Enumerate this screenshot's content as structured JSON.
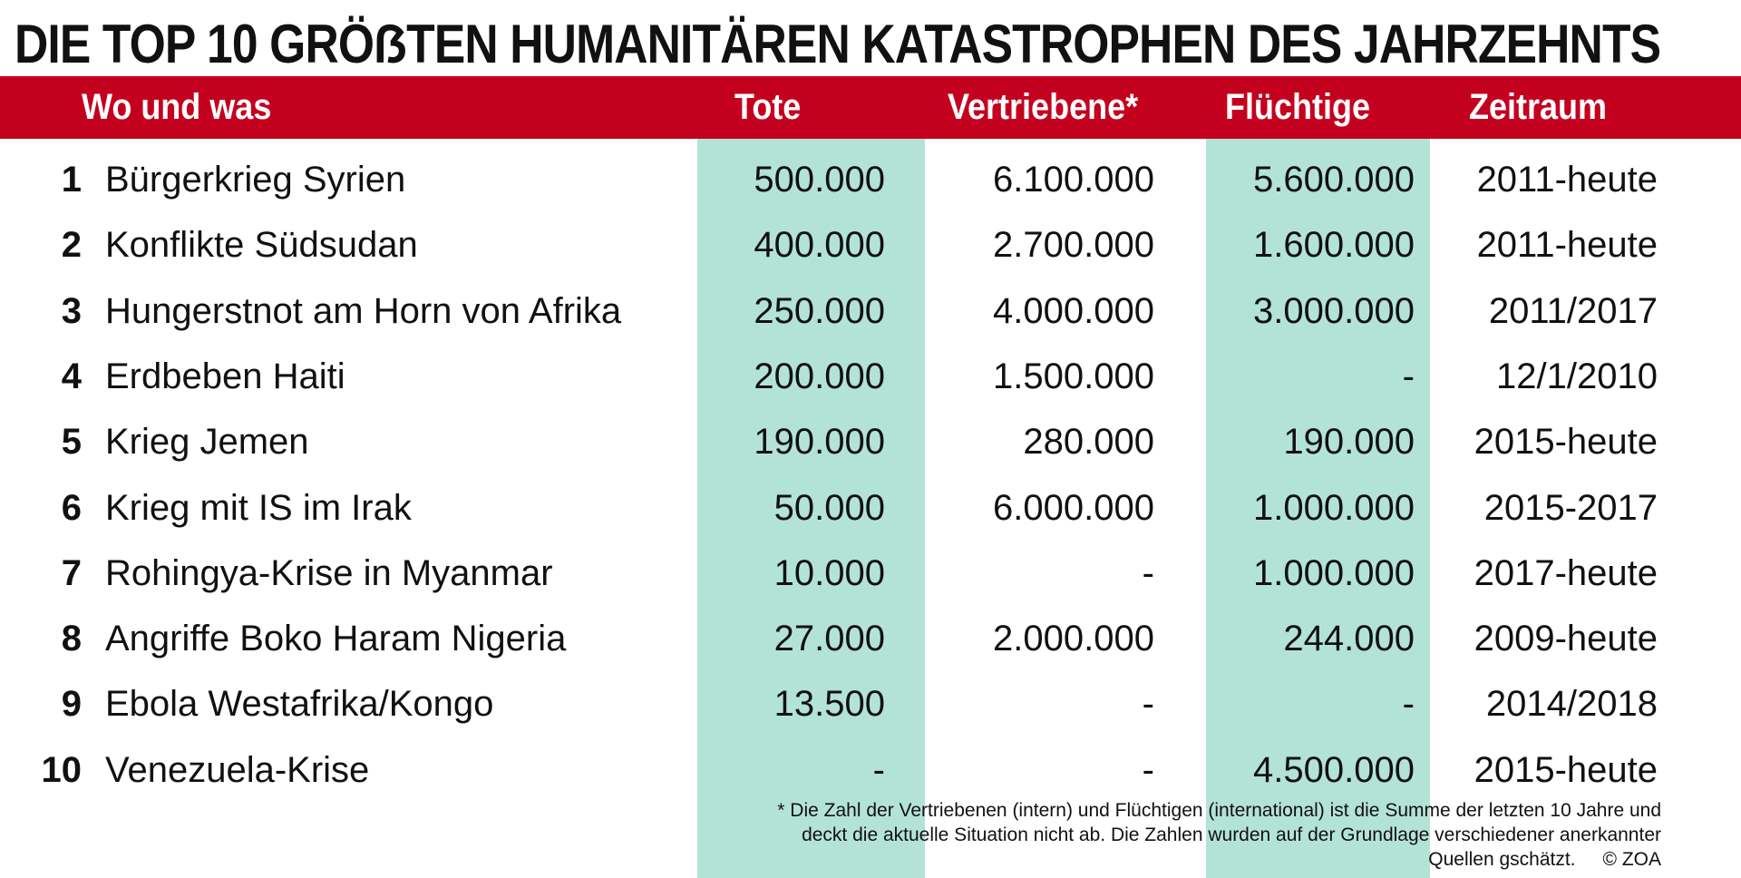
{
  "title": "DIE TOP 10 GRÖẞTEN HUMANITÄREN KATASTROPHEN DES JAHRZEHNTS",
  "colors": {
    "header": "#c4001f",
    "highlight_column": "#b3e3d7"
  },
  "headers": [
    "Wo und was",
    "Tote",
    "Vertriebene*",
    "Flüchtige",
    "Zeitraum"
  ],
  "rows": [
    {
      "rank": "1",
      "name": "Bürgerkrieg Syrien",
      "tote": "500.000",
      "vertriebene": "6.100.000",
      "fluechtige": "5.600.000",
      "zeitraum": "2011-heute"
    },
    {
      "rank": "2",
      "name": "Konflikte Südsudan",
      "tote": "400.000",
      "vertriebene": "2.700.000",
      "fluechtige": "1.600.000",
      "zeitraum": "2011-heute"
    },
    {
      "rank": "3",
      "name": "Hungerstnot am Horn von Afrika",
      "tote": "250.000",
      "vertriebene": "4.000.000",
      "fluechtige": "3.000.000",
      "zeitraum": "2011/2017"
    },
    {
      "rank": "4",
      "name": "Erdbeben Haiti",
      "tote": "200.000",
      "vertriebene": "1.500.000",
      "fluechtige": "-",
      "zeitraum": "12/1/2010"
    },
    {
      "rank": "5",
      "name": "Krieg Jemen",
      "tote": "190.000",
      "vertriebene": "280.000",
      "fluechtige": "190.000",
      "zeitraum": "2015-heute"
    },
    {
      "rank": "6",
      "name": "Krieg mit IS im Irak",
      "tote": "50.000",
      "vertriebene": "6.000.000",
      "fluechtige": "1.000.000",
      "zeitraum": "2015-2017"
    },
    {
      "rank": "7",
      "name": "Rohingya-Krise in Myanmar",
      "tote": "10.000",
      "vertriebene": "-",
      "fluechtige": "1.000.000",
      "zeitraum": "2017-heute"
    },
    {
      "rank": "8",
      "name": "Angriffe Boko Haram Nigeria",
      "tote": "27.000",
      "vertriebene": "2.000.000",
      "fluechtige": "244.000",
      "zeitraum": "2009-heute"
    },
    {
      "rank": "9",
      "name": "Ebola Westafrika/Kongo",
      "tote": "13.500",
      "vertriebene": "-",
      "fluechtige": "-",
      "zeitraum": "2014/2018"
    },
    {
      "rank": "10",
      "name": "Venezuela-Krise",
      "tote": "-",
      "vertriebene": "-",
      "fluechtige": "4.500.000",
      "zeitraum": "2015-heute"
    }
  ],
  "footnote": {
    "line1": "* Die Zahl der Vertriebenen (intern) und Flüchtigen (international) ist die Summe der letzten 10 Jahre und",
    "line2": "deckt die aktuelle Situation nicht ab. Die Zahlen wurden auf der Grundlage verschiedener anerkannter",
    "line3": "Quellen gschätzt.",
    "credit": "© ZOA"
  }
}
